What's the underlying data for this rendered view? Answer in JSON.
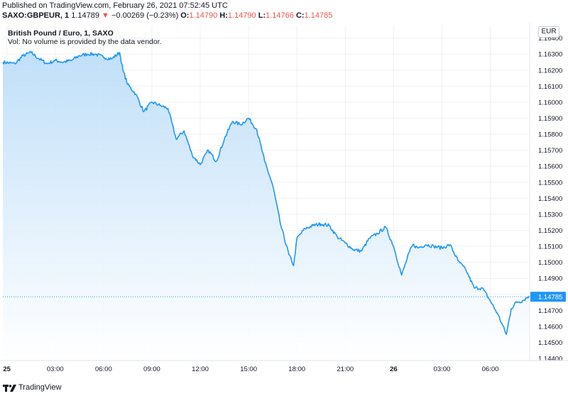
{
  "header": {
    "published": "Published on TradingView.com, February 26, 2021 07:52:45 UTC",
    "symbol": "SAXO:GBPEUR, 1",
    "last": "1.14789",
    "change_arrow": "▼",
    "change": "−0.00269 (−0.23%)",
    "o_label": "O:",
    "o_value": "1.14790",
    "h_label": "H:",
    "h_value": "1.14790",
    "l_label": "L:",
    "l_value": "1.14766",
    "c_label": "C:",
    "c_value": "1.14785"
  },
  "legend": {
    "title": "British Pound / Euro, 1, SAXO",
    "volume_note": "Vol: No volume is provided by the data vendor."
  },
  "currency_button": "EUR",
  "footer": {
    "brand": "TradingView"
  },
  "colors": {
    "line": "#2196f3",
    "fill_top": "#b9dcf8",
    "fill_bottom": "#ffffff",
    "grid": "#eef0f3",
    "price_tag_bg": "#2196f3",
    "down": "#ef5350",
    "axis_text": "#131722"
  },
  "chart_data": {
    "type": "area",
    "title": "British Pound / Euro, 1, SAXO",
    "xlabel": "",
    "ylabel": "",
    "x_ticks": [
      "25",
      "03:00",
      "06:00",
      "09:00",
      "12:00",
      "15:00",
      "18:00",
      "21:00",
      "26",
      "03:00",
      "06:00"
    ],
    "y_ticks": [
      "1.16400",
      "1.16300",
      "1.16200",
      "1.16100",
      "1.16000",
      "1.15900",
      "1.15800",
      "1.15700",
      "1.15600",
      "1.15500",
      "1.15400",
      "1.15300",
      "1.15200",
      "1.15100",
      "1.15000",
      "1.14900",
      "1.14800",
      "1.14700",
      "1.14600",
      "1.14500",
      "1.14400"
    ],
    "ylim": [
      1.14396,
      1.16478
    ],
    "last_price_label": "1.14785",
    "last_price": 1.14785,
    "x_unit": "hours from Feb 25 00:00",
    "x_range": [
      -0.25,
      32.4
    ],
    "series": [
      {
        "x": [
          -0.25,
          0.5,
          1.0,
          1.5,
          2.0,
          2.5,
          3.0,
          3.5,
          4.0,
          4.5,
          5.0,
          5.5,
          6.0,
          6.5,
          7.0,
          7.2,
          7.5,
          8.0,
          8.5,
          9.0,
          9.5,
          10.0,
          10.5,
          11.0,
          11.5,
          12.0,
          12.5,
          13.0,
          13.5,
          14.0,
          14.5,
          15.0,
          15.5,
          16.0,
          16.5,
          17.0,
          17.5,
          17.8,
          18.0,
          18.5,
          19.0,
          19.5,
          20.0,
          20.5,
          21.0,
          21.5,
          22.0,
          22.5,
          23.0,
          23.5,
          24.0,
          24.5,
          25.0,
          25.2,
          25.5,
          26.0,
          26.5,
          27.0,
          27.5,
          28.0,
          28.5,
          29.0,
          29.5,
          30.0,
          30.5,
          31.0,
          31.3,
          31.6,
          32.0,
          32.4
        ],
        "y": [
          1.1625,
          1.1624,
          1.1629,
          1.1631,
          1.1627,
          1.1624,
          1.1626,
          1.1625,
          1.1626,
          1.1629,
          1.163,
          1.163,
          1.1628,
          1.1627,
          1.1631,
          1.162,
          1.1611,
          1.1605,
          1.1594,
          1.16,
          1.1598,
          1.1596,
          1.1577,
          1.1582,
          1.1567,
          1.1561,
          1.157,
          1.1563,
          1.1577,
          1.1588,
          1.1586,
          1.159,
          1.1583,
          1.1563,
          1.1548,
          1.1523,
          1.1505,
          1.1498,
          1.1515,
          1.1521,
          1.1523,
          1.1524,
          1.1523,
          1.1516,
          1.1512,
          1.1508,
          1.1507,
          1.1515,
          1.1518,
          1.1522,
          1.151,
          1.1492,
          1.1507,
          1.1511,
          1.1509,
          1.1511,
          1.151,
          1.1509,
          1.1511,
          1.1501,
          1.1495,
          1.1484,
          1.1484,
          1.1476,
          1.1467,
          1.1455,
          1.1471,
          1.1475,
          1.1476,
          1.1479
        ]
      }
    ]
  }
}
